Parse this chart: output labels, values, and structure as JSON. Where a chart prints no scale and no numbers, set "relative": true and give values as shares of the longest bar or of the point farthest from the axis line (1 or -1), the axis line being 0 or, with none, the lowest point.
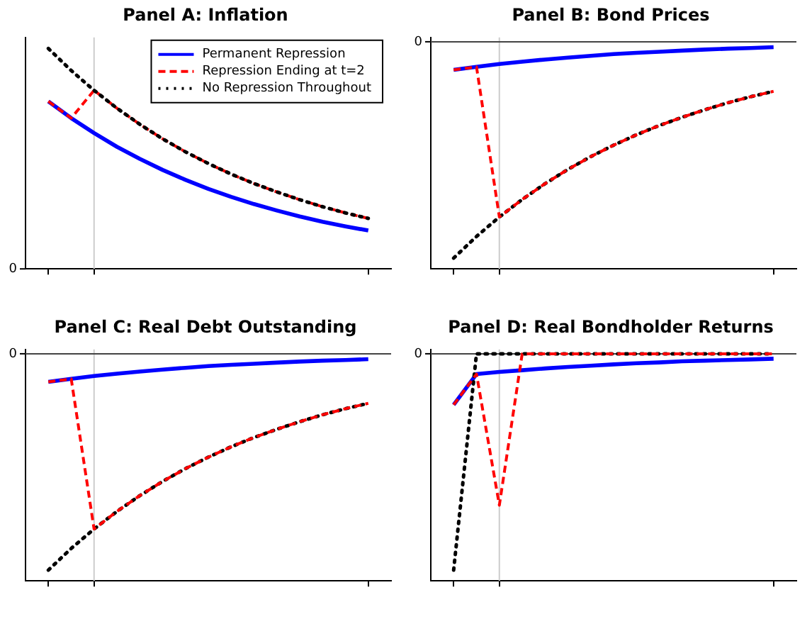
{
  "chart_data": [
    {
      "type": "line",
      "title": "Panel A: Inflation",
      "relative": true,
      "categories": [
        null,
        null,
        null,
        null,
        null,
        null,
        null,
        null,
        null,
        null,
        null,
        null,
        null,
        null,
        null
      ],
      "annotations": [
        "0"
      ],
      "grid": false,
      "marker": "none",
      "legend": "top right",
      "series": [
        {
          "name": "Permanent Repression",
          "color": "#0000ff",
          "line_style": "solid",
          "values": [
            0.76,
            0.684,
            0.616,
            0.554,
            0.499,
            0.449,
            0.404,
            0.363,
            0.327,
            0.294,
            0.265,
            0.238,
            0.214,
            0.193,
            0.174
          ]
        },
        {
          "name": "Repression Ending at t=2",
          "color": "#ff0000",
          "line_style": "dashed",
          "values": [
            0.76,
            0.684,
            0.81,
            0.729,
            0.656,
            0.59,
            0.531,
            0.478,
            0.43,
            0.387,
            0.349,
            0.314,
            0.282,
            0.254,
            0.229
          ]
        },
        {
          "name": "No Repression Throughout",
          "color": "#000000",
          "line_style": "dotted",
          "values": [
            1,
            0.9,
            0.81,
            0.729,
            0.656,
            0.59,
            0.531,
            0.478,
            0.43,
            0.387,
            0.349,
            0.314,
            0.282,
            0.254,
            0.229
          ]
        }
      ]
    },
    {
      "type": "line",
      "title": "Panel B: Bond Prices",
      "relative": true,
      "categories": [
        null,
        null,
        null,
        null,
        null,
        null,
        null,
        null,
        null,
        null,
        null,
        null,
        null,
        null,
        null
      ],
      "annotations": [
        "0"
      ],
      "grid": false,
      "marker": "none",
      "ref_lines": [
        {
          "axis": "y",
          "value": 0,
          "color": "#444444"
        }
      ],
      "series": [
        {
          "color": "#0000ff",
          "line_style": "solid",
          "values": [
            -0.13,
            -0.116,
            -0.103,
            -0.092,
            -0.082,
            -0.073,
            -0.065,
            -0.057,
            -0.051,
            -0.046,
            -0.041,
            -0.036,
            -0.032,
            -0.029,
            -0.025
          ]
        },
        {
          "color": "#000000",
          "line_style": "dotted",
          "values": [
            -1,
            -0.9,
            -0.81,
            -0.729,
            -0.656,
            -0.59,
            -0.531,
            -0.478,
            -0.43,
            -0.387,
            -0.349,
            -0.314,
            -0.282,
            -0.254,
            -0.229
          ]
        },
        {
          "color": "#ff0000",
          "line_style": "dashed",
          "values": [
            -0.13,
            -0.116,
            -0.81,
            -0.729,
            -0.656,
            -0.59,
            -0.531,
            -0.478,
            -0.43,
            -0.387,
            -0.349,
            -0.314,
            -0.282,
            -0.254,
            -0.229
          ]
        }
      ]
    },
    {
      "type": "line",
      "title": "Panel C: Real Debt Outstanding",
      "relative": true,
      "categories": [
        null,
        null,
        null,
        null,
        null,
        null,
        null,
        null,
        null,
        null,
        null,
        null,
        null,
        null,
        null
      ],
      "annotations": [
        "0"
      ],
      "grid": false,
      "marker": "none",
      "ref_lines": [
        {
          "axis": "y",
          "value": 0,
          "color": "#444444"
        }
      ],
      "series": [
        {
          "color": "#0000ff",
          "line_style": "solid",
          "values": [
            -0.13,
            -0.116,
            -0.103,
            -0.092,
            -0.082,
            -0.073,
            -0.065,
            -0.057,
            -0.051,
            -0.046,
            -0.041,
            -0.036,
            -0.032,
            -0.029,
            -0.025
          ]
        },
        {
          "color": "#000000",
          "line_style": "dotted",
          "values": [
            -1,
            -0.9,
            -0.81,
            -0.729,
            -0.656,
            -0.59,
            -0.531,
            -0.478,
            -0.43,
            -0.387,
            -0.349,
            -0.314,
            -0.282,
            -0.254,
            -0.229
          ]
        },
        {
          "color": "#ff0000",
          "line_style": "dashed",
          "values": [
            -0.13,
            -0.116,
            -0.81,
            -0.729,
            -0.656,
            -0.59,
            -0.531,
            -0.478,
            -0.43,
            -0.387,
            -0.349,
            -0.314,
            -0.282,
            -0.254,
            -0.229
          ]
        }
      ]
    },
    {
      "type": "line",
      "title": "Panel D: Real Bondholder Returns",
      "relative": true,
      "categories": [
        null,
        null,
        null,
        null,
        null,
        null,
        null,
        null,
        null,
        null,
        null,
        null,
        null,
        null,
        null
      ],
      "annotations": [
        "0"
      ],
      "grid": false,
      "marker": "none",
      "ref_lines": [
        {
          "axis": "y",
          "value": 0,
          "color": "#444444"
        }
      ],
      "series": [
        {
          "color": "#0000ff",
          "line_style": "solid",
          "values": [
            -0.236,
            -0.094,
            -0.084,
            -0.076,
            -0.068,
            -0.061,
            -0.055,
            -0.049,
            -0.044,
            -0.04,
            -0.035,
            -0.032,
            -0.029,
            -0.026,
            -0.023
          ]
        },
        {
          "color": "#000000",
          "line_style": "dotted",
          "values": [
            -1,
            0,
            0,
            0,
            0,
            0,
            0,
            0,
            0,
            0,
            0,
            0,
            0,
            0,
            0
          ]
        },
        {
          "color": "#ff0000",
          "line_style": "dashed",
          "values": [
            -0.236,
            -0.094,
            -0.7,
            0,
            0,
            0,
            0,
            0,
            0,
            0,
            0,
            0,
            0,
            0,
            0
          ]
        }
      ]
    }
  ]
}
